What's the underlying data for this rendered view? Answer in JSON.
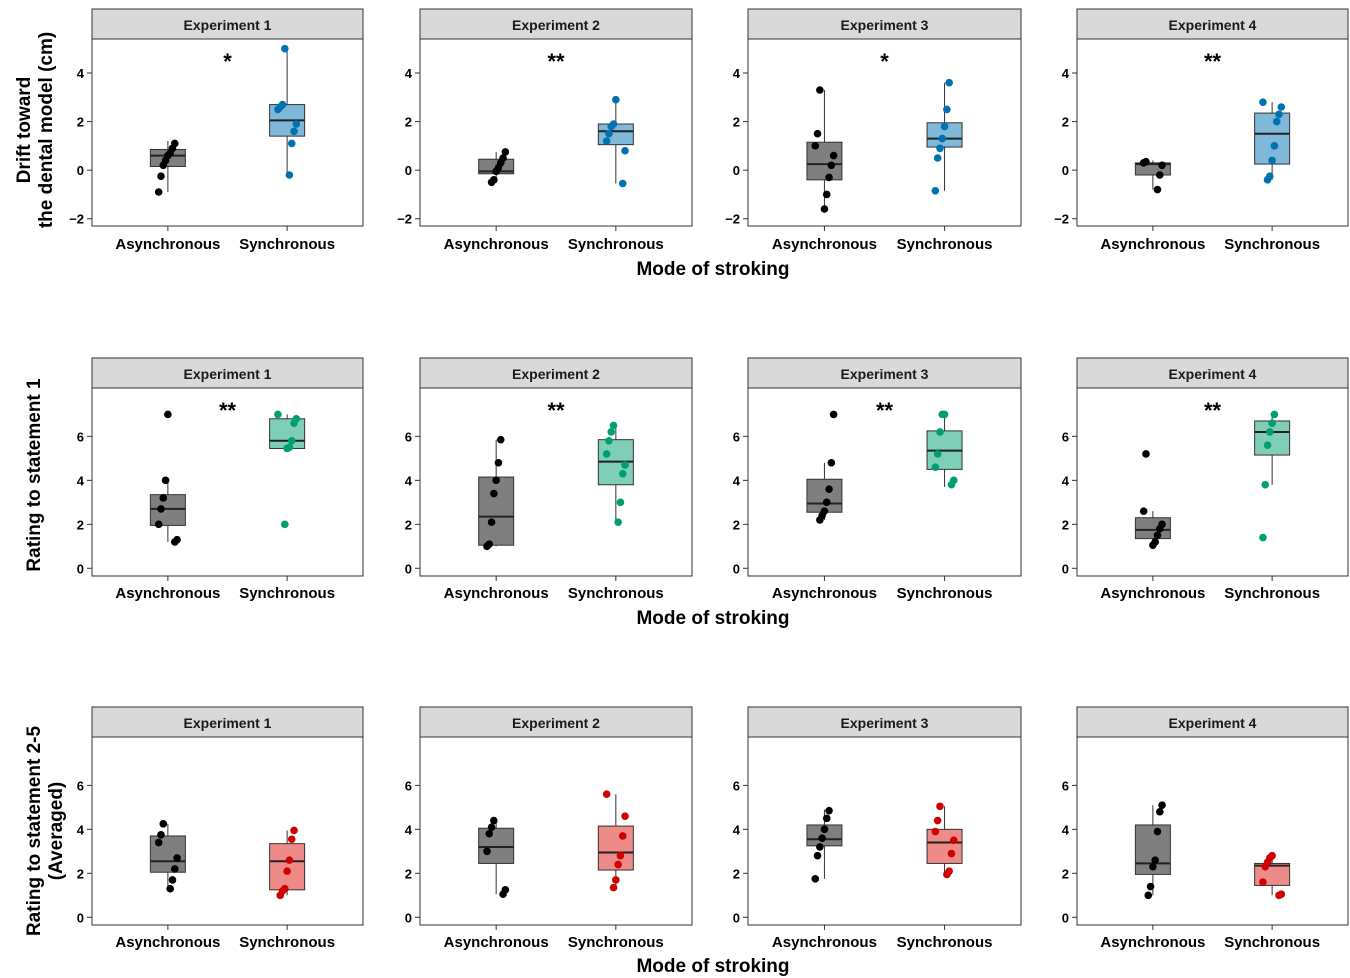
{
  "chart_data": [
    {
      "type": "boxplot",
      "row": 1,
      "ylabel": [
        "Drift toward",
        "the dental model (cm)"
      ],
      "xlabel": "Mode of stroking",
      "ylim": [
        -2.3,
        5.4
      ],
      "yticks": [
        -2,
        0,
        2,
        4
      ],
      "categories": [
        "Asynchronous",
        "Synchronous"
      ],
      "colors": {
        "Asynchronous": "#000000",
        "Synchronous": "#0072B2",
        "Asynchronous_box": "#7f7f7f",
        "Synchronous_box": "#7fb8d8"
      },
      "panels": [
        {
          "title": "Experiment 1",
          "significance": "*",
          "Asynchronous": {
            "box": {
              "min": -0.9,
              "q1": 0.15,
              "median": 0.6,
              "q3": 0.85,
              "max": 1.2
            },
            "points": [
              -0.9,
              -0.25,
              0.2,
              0.4,
              0.6,
              0.7,
              0.9,
              1.1
            ]
          },
          "Synchronous": {
            "box": {
              "min": -0.2,
              "q1": 1.4,
              "median": 2.05,
              "q3": 2.7,
              "max": 5.0
            },
            "points": [
              -0.2,
              1.1,
              1.6,
              1.9,
              2.5,
              2.6,
              2.7,
              5.0
            ]
          }
        },
        {
          "title": "Experiment 2",
          "significance": "**",
          "Asynchronous": {
            "box": {
              "min": -0.5,
              "q1": -0.15,
              "median": -0.05,
              "q3": 0.45,
              "max": 0.75
            },
            "points": [
              -0.5,
              -0.4,
              -0.05,
              0.1,
              0.3,
              0.5,
              0.75
            ]
          },
          "Synchronous": {
            "box": {
              "min": -0.55,
              "q1": 1.05,
              "median": 1.6,
              "q3": 1.9,
              "max": 2.9
            },
            "points": [
              -0.55,
              0.8,
              1.2,
              1.5,
              1.8,
              1.9,
              2.9
            ]
          }
        },
        {
          "title": "Experiment 3",
          "significance": "*",
          "Asynchronous": {
            "box": {
              "min": -1.6,
              "q1": -0.4,
              "median": 0.25,
              "q3": 1.15,
              "max": 3.3
            },
            "points": [
              -1.6,
              -1.0,
              -0.3,
              0.2,
              0.6,
              1.0,
              1.5,
              3.3
            ]
          },
          "Synchronous": {
            "box": {
              "min": -0.85,
              "q1": 0.95,
              "median": 1.3,
              "q3": 1.95,
              "max": 3.6
            },
            "points": [
              -0.85,
              0.5,
              0.9,
              1.3,
              1.8,
              2.5,
              3.6
            ]
          }
        },
        {
          "title": "Experiment 4",
          "significance": "**",
          "Asynchronous": {
            "box": {
              "min": -0.8,
              "q1": -0.2,
              "median": 0.25,
              "q3": 0.3,
              "max": 0.4
            },
            "points": [
              -0.8,
              -0.2,
              0.2,
              0.3,
              0.35
            ]
          },
          "Synchronous": {
            "box": {
              "min": -0.4,
              "q1": 0.25,
              "median": 1.5,
              "q3": 2.35,
              "max": 2.8
            },
            "points": [
              -0.4,
              -0.25,
              0.4,
              1.0,
              2.0,
              2.3,
              2.6,
              2.8
            ]
          }
        }
      ]
    },
    {
      "type": "boxplot",
      "row": 2,
      "ylabel": [
        "Rating to statement 1"
      ],
      "xlabel": "Mode of stroking",
      "ylim": [
        -0.35,
        8.2
      ],
      "yticks": [
        0,
        2,
        4,
        6
      ],
      "categories": [
        "Asynchronous",
        "Synchronous"
      ],
      "colors": {
        "Asynchronous": "#000000",
        "Synchronous": "#009E73",
        "Asynchronous_box": "#7f7f7f",
        "Synchronous_box": "#7fceb8"
      },
      "panels": [
        {
          "title": "Experiment 1",
          "significance": "**",
          "Asynchronous": {
            "box": {
              "min": 1.2,
              "q1": 1.95,
              "median": 2.7,
              "q3": 3.35,
              "max": 4.0
            },
            "points": [
              1.2,
              1.3,
              2.0,
              2.7,
              3.2,
              4.0,
              7.0
            ]
          },
          "Synchronous": {
            "box": {
              "min": 5.45,
              "q1": 5.45,
              "median": 5.8,
              "q3": 6.8,
              "max": 7.0
            },
            "points": [
              2.0,
              5.45,
              5.5,
              5.8,
              6.6,
              6.8,
              7.0
            ]
          }
        },
        {
          "title": "Experiment 2",
          "significance": "**",
          "Asynchronous": {
            "box": {
              "min": 1.0,
              "q1": 1.05,
              "median": 2.35,
              "q3": 4.15,
              "max": 5.85
            },
            "points": [
              1.0,
              1.1,
              2.1,
              3.4,
              4.0,
              4.8,
              5.85
            ]
          },
          "Synchronous": {
            "box": {
              "min": 2.1,
              "q1": 3.8,
              "median": 4.85,
              "q3": 5.85,
              "max": 6.5
            },
            "points": [
              2.1,
              3.0,
              4.3,
              4.7,
              5.2,
              5.8,
              6.2,
              6.5
            ]
          }
        },
        {
          "title": "Experiment 3",
          "significance": "**",
          "Asynchronous": {
            "box": {
              "min": 2.2,
              "q1": 2.55,
              "median": 2.95,
              "q3": 4.05,
              "max": 4.8
            },
            "points": [
              2.2,
              2.4,
              2.6,
              3.0,
              3.6,
              4.8,
              7.0
            ]
          },
          "Synchronous": {
            "box": {
              "min": 3.7,
              "q1": 4.5,
              "median": 5.35,
              "q3": 6.25,
              "max": 7.0
            },
            "points": [
              3.8,
              4.0,
              4.6,
              5.2,
              6.2,
              7.0,
              7.0
            ]
          }
        },
        {
          "title": "Experiment 4",
          "significance": "**",
          "Asynchronous": {
            "box": {
              "min": 1.05,
              "q1": 1.35,
              "median": 1.75,
              "q3": 2.3,
              "max": 2.6
            },
            "points": [
              1.05,
              1.2,
              1.5,
              1.8,
              2.0,
              2.6,
              5.2
            ]
          },
          "Synchronous": {
            "box": {
              "min": 3.8,
              "q1": 5.15,
              "median": 6.2,
              "q3": 6.7,
              "max": 7.0
            },
            "points": [
              1.4,
              3.8,
              5.6,
              6.2,
              6.6,
              7.0
            ]
          }
        }
      ]
    },
    {
      "type": "boxplot",
      "row": 3,
      "ylabel": [
        "Rating to statement 2-5",
        "(Averaged)"
      ],
      "xlabel": "Mode of stroking",
      "ylim": [
        -0.35,
        8.2
      ],
      "yticks": [
        0,
        2,
        4,
        6
      ],
      "categories": [
        "Asynchronous",
        "Synchronous"
      ],
      "colors": {
        "Asynchronous": "#000000",
        "Synchronous": "#D00000",
        "Asynchronous_box": "#7f7f7f",
        "Synchronous_box": "#ee8a88"
      },
      "panels": [
        {
          "title": "Experiment 1",
          "significance": "",
          "Asynchronous": {
            "box": {
              "min": 1.3,
              "q1": 2.05,
              "median": 2.55,
              "q3": 3.7,
              "max": 4.25
            },
            "points": [
              1.3,
              1.7,
              2.2,
              2.7,
              3.4,
              3.75,
              4.25
            ]
          },
          "Synchronous": {
            "box": {
              "min": 1.0,
              "q1": 1.25,
              "median": 2.55,
              "q3": 3.35,
              "max": 3.95
            },
            "points": [
              1.0,
              1.2,
              1.3,
              2.1,
              2.6,
              3.55,
              3.95
            ]
          }
        },
        {
          "title": "Experiment 2",
          "significance": "",
          "Asynchronous": {
            "box": {
              "min": 1.05,
              "q1": 2.45,
              "median": 3.2,
              "q3": 4.05,
              "max": 4.4
            },
            "points": [
              1.05,
              1.25,
              3.0,
              3.8,
              4.1,
              4.4
            ]
          },
          "Synchronous": {
            "box": {
              "min": 1.35,
              "q1": 2.15,
              "median": 2.95,
              "q3": 4.15,
              "max": 5.6
            },
            "points": [
              1.35,
              1.7,
              2.4,
              2.8,
              3.7,
              4.6,
              5.6
            ]
          }
        },
        {
          "title": "Experiment 3",
          "significance": "",
          "Asynchronous": {
            "box": {
              "min": 1.75,
              "q1": 3.25,
              "median": 3.55,
              "q3": 4.2,
              "max": 4.9
            },
            "points": [
              1.75,
              2.8,
              3.2,
              3.6,
              4.0,
              4.5,
              4.85
            ]
          },
          "Synchronous": {
            "box": {
              "min": 1.95,
              "q1": 2.45,
              "median": 3.4,
              "q3": 4.0,
              "max": 5.05
            },
            "points": [
              1.95,
              2.1,
              2.9,
              3.5,
              3.9,
              4.4,
              5.05
            ]
          }
        },
        {
          "title": "Experiment 4",
          "significance": "",
          "Asynchronous": {
            "box": {
              "min": 1.0,
              "q1": 1.95,
              "median": 2.45,
              "q3": 4.2,
              "max": 5.1
            },
            "points": [
              1.0,
              1.4,
              2.3,
              2.6,
              3.9,
              4.8,
              5.1
            ]
          },
          "Synchronous": {
            "box": {
              "min": 1.0,
              "q1": 1.45,
              "median": 2.35,
              "q3": 2.45,
              "max": 2.8
            },
            "points": [
              1.0,
              1.05,
              1.6,
              2.3,
              2.5,
              2.7,
              2.8
            ]
          }
        }
      ]
    }
  ]
}
